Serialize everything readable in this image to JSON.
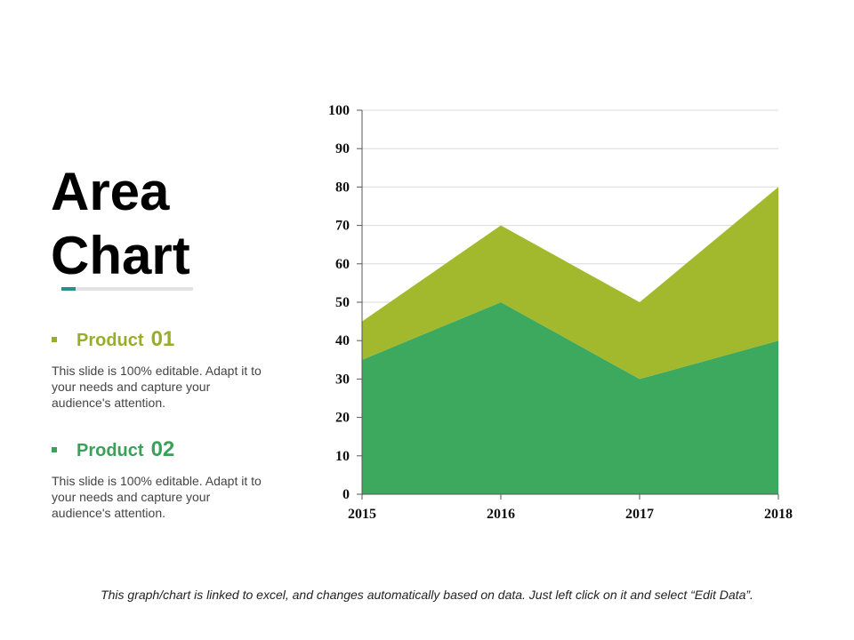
{
  "title": {
    "line1": "Area",
    "line2": "Chart"
  },
  "products": [
    {
      "name": "Product",
      "number": "01",
      "description": "This slide is 100% editable. Adapt it to your needs and capture your audience's attention."
    },
    {
      "name": "Product",
      "number": "02",
      "description": "This slide is 100% editable. Adapt it to your needs and capture your audience's attention."
    }
  ],
  "footer": "This graph/chart is linked to excel, and changes automatically based on data. Just left click on it and select “Edit Data”.",
  "colors": {
    "product01": "#a3b92d",
    "product02": "#3da95e",
    "accent": "#2a8f8a"
  },
  "chart_data": {
    "type": "area",
    "stacked": true,
    "categories": [
      "2015",
      "2016",
      "2017",
      "2018"
    ],
    "series": [
      {
        "name": "Product 02",
        "values": [
          35,
          50,
          30,
          40
        ]
      },
      {
        "name": "Product 01",
        "values": [
          10,
          20,
          20,
          40
        ]
      }
    ],
    "ylim": [
      0,
      100
    ],
    "yticks": [
      0,
      10,
      20,
      30,
      40,
      50,
      60,
      70,
      80,
      90,
      100
    ],
    "grid": true,
    "title": "",
    "xlabel": "",
    "ylabel": ""
  }
}
